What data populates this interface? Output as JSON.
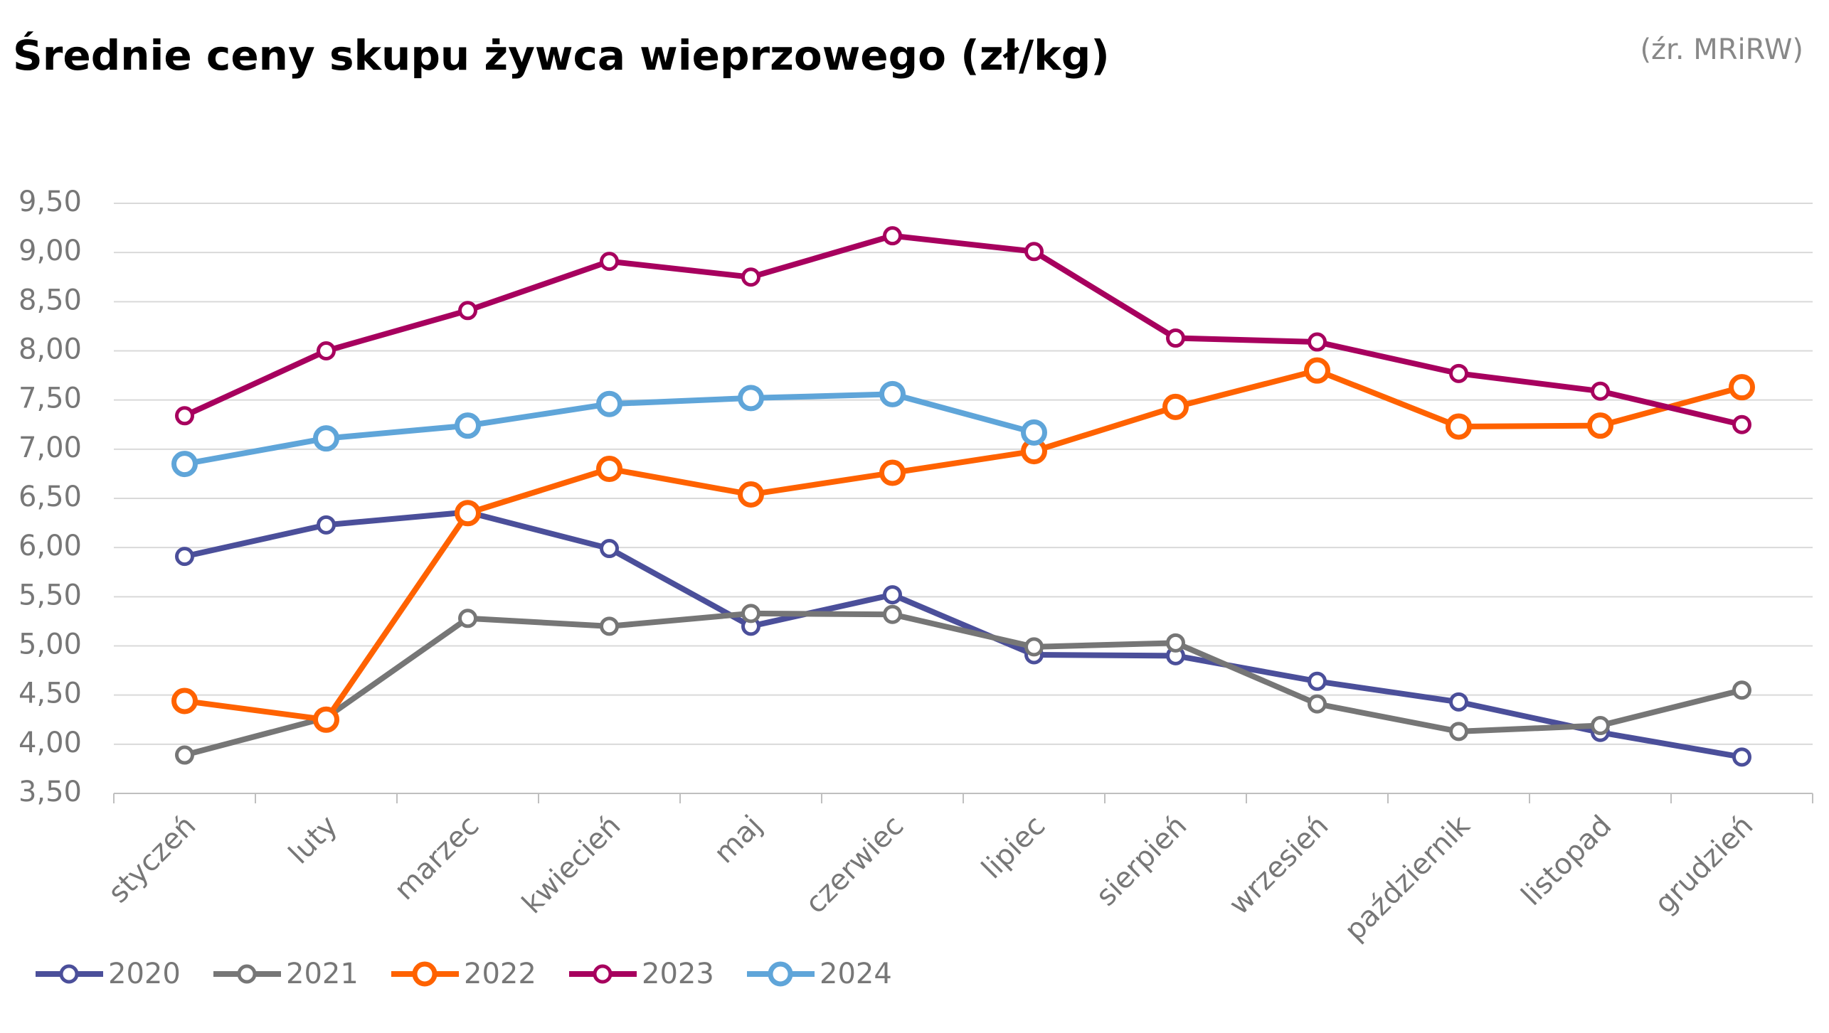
{
  "chart_data": {
    "type": "line",
    "title": "Średnie ceny skupu żywca wieprzowego (zł/kg)",
    "source": "(źr. MRiRW)",
    "categories": [
      "styczeń",
      "luty",
      "marzec",
      "kwiecień",
      "maj",
      "czerwiec",
      "lipiec",
      "sierpień",
      "wrzesień",
      "październik",
      "listopad",
      "grudzień"
    ],
    "series": [
      {
        "name": "2020",
        "color": "#4b4f9a",
        "values": [
          5.91,
          6.23,
          6.36,
          5.99,
          5.2,
          5.52,
          4.91,
          4.9,
          4.64,
          4.43,
          4.12,
          3.87
        ]
      },
      {
        "name": "2021",
        "color": "#767676",
        "values": [
          3.89,
          4.27,
          5.28,
          5.2,
          5.33,
          5.32,
          4.99,
          5.03,
          4.41,
          4.13,
          4.19,
          4.55
        ]
      },
      {
        "name": "2022",
        "color": "#ff6200",
        "values": [
          4.44,
          4.25,
          6.35,
          6.8,
          6.54,
          6.76,
          6.98,
          7.43,
          7.8,
          7.23,
          7.24,
          7.63
        ]
      },
      {
        "name": "2023",
        "color": "#a7005e",
        "values": [
          7.34,
          8.0,
          8.41,
          8.91,
          8.75,
          9.17,
          9.01,
          8.13,
          8.09,
          7.77,
          7.59,
          7.25
        ]
      },
      {
        "name": "2024",
        "color": "#5fa5d9",
        "values": [
          6.85,
          7.11,
          7.24,
          7.46,
          7.52,
          7.56,
          7.17,
          null,
          null,
          null,
          null,
          null
        ]
      }
    ],
    "ylim": [
      3.5,
      9.5
    ],
    "yticks": [
      {
        "value": 3.5,
        "label": "3,50"
      },
      {
        "value": 4,
        "label": "4,00"
      },
      {
        "value": 4.5,
        "label": "4,50"
      },
      {
        "value": 5,
        "label": "5,00"
      },
      {
        "value": 5.5,
        "label": "5,50"
      },
      {
        "value": 6,
        "label": "6,00"
      },
      {
        "value": 6.5,
        "label": "6,50"
      },
      {
        "value": 7,
        "label": "7,00"
      },
      {
        "value": 7.5,
        "label": "7,50"
      },
      {
        "value": 8,
        "label": "8,00"
      },
      {
        "value": 8.5,
        "label": "8,50"
      },
      {
        "value": 9,
        "label": "9,00"
      },
      {
        "value": 9.5,
        "label": "9,50"
      }
    ],
    "grid": true,
    "legend": "bottom"
  }
}
